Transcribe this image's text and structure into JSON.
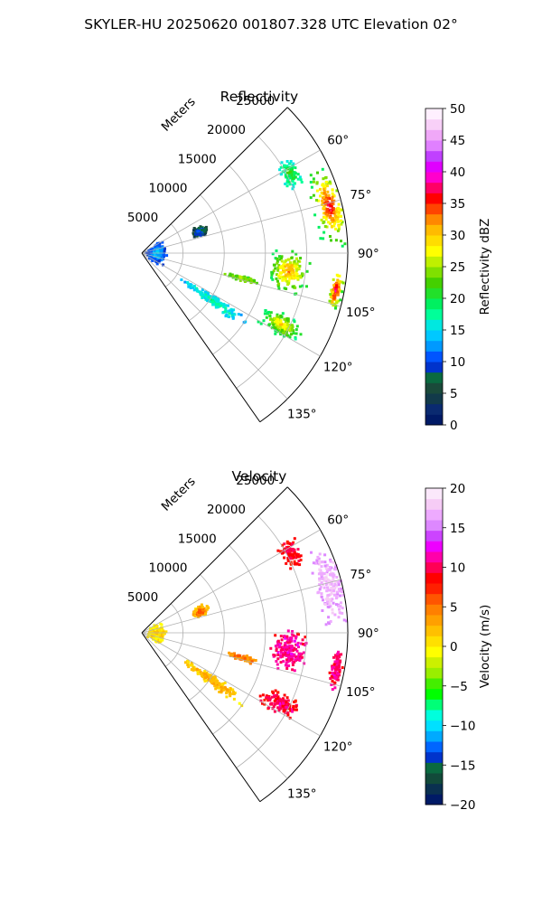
{
  "figure_title": "SKYLER-HU  20250620  001807.328 UTC Elevation 02°",
  "colors": {
    "grid": "#b0b0b0",
    "axis": "#000000",
    "background": "#ffffff"
  },
  "chart_data": [
    {
      "type": "polar-sector",
      "title": "Reflectivity",
      "range_label": "Meters",
      "range_max_m": 25000,
      "range_ticks": [
        5000,
        10000,
        15000,
        20000,
        25000
      ],
      "azimuth_min_deg": 45,
      "azimuth_max_deg": 145,
      "azimuth_gridlines_deg": [
        60,
        75,
        90,
        105,
        120,
        135
      ],
      "azimuth_tick_labels": [
        "60°",
        "75°",
        "90°",
        "105°",
        "120°",
        "135°"
      ],
      "colorbar": {
        "label": "Reflectivity dBZ",
        "min": 0,
        "max": 50,
        "ticks": [
          "0",
          "5",
          "10",
          "15",
          "20",
          "25",
          "30",
          "35",
          "40",
          "45",
          "50"
        ],
        "colors": [
          "#001a66",
          "#0a2a70",
          "#123a4a",
          "#1a4a3a",
          "#0a6a40",
          "#0033cc",
          "#0055ff",
          "#0099ff",
          "#00c8ff",
          "#00e8e0",
          "#00ff99",
          "#00f060",
          "#22e02a",
          "#44d000",
          "#80e000",
          "#bff000",
          "#ffff00",
          "#ffdd00",
          "#ffbb00",
          "#ff8800",
          "#ff4400",
          "#ff0000",
          "#ff0066",
          "#ff00cc",
          "#e000ff",
          "#c040ff",
          "#e080ff",
          "#f0a8f8",
          "#f8d0f8",
          "#fff0ff"
        ]
      },
      "echoes": [
        {
          "region": "far northeast cell",
          "range_m": 23500,
          "azimuth_deg": 76,
          "extent_m": 2200,
          "spread_deg": 14,
          "value_dbz": 20,
          "core_dbz": 38
        },
        {
          "region": "east core",
          "range_m": 18000,
          "azimuth_deg": 97,
          "extent_m": 2800,
          "spread_deg": 10,
          "value_dbz": 20,
          "core_dbz": 33
        },
        {
          "region": "east edge cells",
          "range_m": 24000,
          "azimuth_deg": 101,
          "extent_m": 900,
          "spread_deg": 7,
          "value_dbz": 22,
          "core_dbz": 40
        },
        {
          "region": "southeast line",
          "range_m": 19000,
          "azimuth_deg": 117,
          "extent_m": 3500,
          "spread_deg": 5,
          "value_dbz": 18,
          "core_dbz": 30
        },
        {
          "region": "south-southeast band",
          "range_m": 10500,
          "azimuth_deg": 124,
          "extent_m": 5500,
          "spread_deg": 4,
          "value_dbz": 14,
          "core_dbz": 18
        },
        {
          "region": "radial streak",
          "range_m": 12500,
          "azimuth_deg": 104,
          "extent_m": 2500,
          "spread_deg": 2,
          "value_dbz": 22,
          "core_dbz": 25
        },
        {
          "region": "near-radar clutter",
          "range_m": 1800,
          "azimuth_deg": 92,
          "extent_m": 1400,
          "spread_deg": 40,
          "value_dbz": 10,
          "core_dbz": 15
        },
        {
          "region": "northwest scatter",
          "range_m": 7500,
          "azimuth_deg": 70,
          "extent_m": 1200,
          "spread_deg": 6,
          "value_dbz": 5,
          "core_dbz": 12
        },
        {
          "region": "north scatter",
          "range_m": 20500,
          "azimuth_deg": 62,
          "extent_m": 1500,
          "spread_deg": 6,
          "value_dbz": 16,
          "core_dbz": 22
        }
      ]
    },
    {
      "type": "polar-sector",
      "title": "Velocity",
      "range_label": "Meters",
      "range_max_m": 25000,
      "range_ticks": [
        5000,
        10000,
        15000,
        20000,
        25000
      ],
      "azimuth_min_deg": 45,
      "azimuth_max_deg": 145,
      "azimuth_gridlines_deg": [
        60,
        75,
        90,
        105,
        120,
        135
      ],
      "azimuth_tick_labels": [
        "60°",
        "75°",
        "90°",
        "105°",
        "120°",
        "135°"
      ],
      "colorbar": {
        "label": "Velocity (m/s)",
        "min": -20,
        "max": 20,
        "ticks": [
          "−20",
          "−15",
          "−10",
          "−5",
          "0",
          "5",
          "10",
          "15",
          "20"
        ],
        "colors": [
          "#001a66",
          "#0a3050",
          "#124a3a",
          "#0a6a40",
          "#0033cc",
          "#0066ff",
          "#00aaff",
          "#00e0ff",
          "#00ffdd",
          "#00ff77",
          "#00ff00",
          "#44ee00",
          "#99ee00",
          "#ccf000",
          "#ffff00",
          "#ffe000",
          "#ffc000",
          "#ffa000",
          "#ff8000",
          "#ff5500",
          "#ff2000",
          "#ff0000",
          "#ff0055",
          "#ff00aa",
          "#ee00ff",
          "#cc44ff",
          "#dd88ff",
          "#eeaaff",
          "#f6ccf6",
          "#fbe8fb"
        ]
      },
      "echoes": [
        {
          "region": "far northeast cell",
          "range_m": 23500,
          "azimuth_deg": 76,
          "extent_m": 2200,
          "spread_deg": 14,
          "value_ms": 16,
          "core_ms": 18
        },
        {
          "region": "east core",
          "range_m": 18000,
          "azimuth_deg": 97,
          "extent_m": 2800,
          "spread_deg": 10,
          "value_ms": 10,
          "core_ms": 12
        },
        {
          "region": "east edge cells",
          "range_m": 24000,
          "azimuth_deg": 101,
          "extent_m": 900,
          "spread_deg": 7,
          "value_ms": 10,
          "core_ms": 11
        },
        {
          "region": "southeast line",
          "range_m": 19000,
          "azimuth_deg": 117,
          "extent_m": 3500,
          "spread_deg": 5,
          "value_ms": 8,
          "core_ms": 11
        },
        {
          "region": "south-southeast band",
          "range_m": 10500,
          "azimuth_deg": 124,
          "extent_m": 5500,
          "spread_deg": 4,
          "value_ms": 1,
          "core_ms": 3
        },
        {
          "region": "radial streak",
          "range_m": 12500,
          "azimuth_deg": 104,
          "extent_m": 2500,
          "spread_deg": 2,
          "value_ms": 4,
          "core_ms": 5
        },
        {
          "region": "near-radar clutter",
          "range_m": 1800,
          "azimuth_deg": 92,
          "extent_m": 1400,
          "spread_deg": 40,
          "value_ms": 0,
          "core_ms": 1
        },
        {
          "region": "northwest scatter",
          "range_m": 7500,
          "azimuth_deg": 70,
          "extent_m": 1200,
          "spread_deg": 6,
          "value_ms": 1,
          "core_ms": 8
        },
        {
          "region": "north scatter",
          "range_m": 20500,
          "azimuth_deg": 62,
          "extent_m": 1500,
          "spread_deg": 6,
          "value_ms": 8,
          "core_ms": 10
        }
      ]
    }
  ]
}
